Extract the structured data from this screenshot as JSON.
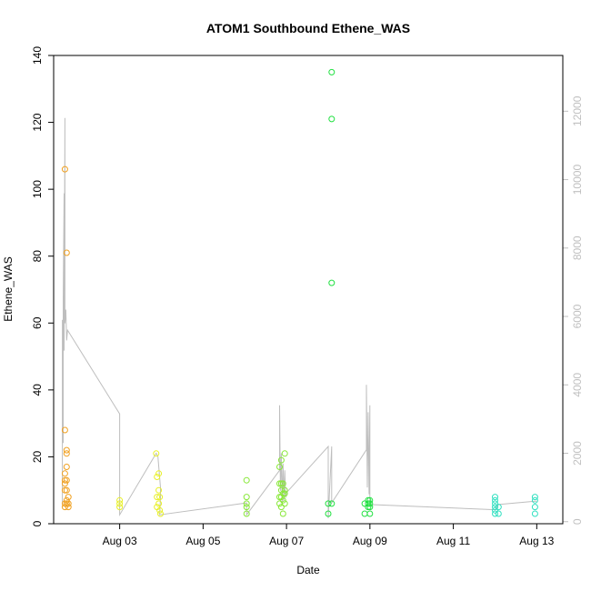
{
  "chart_data": {
    "type": "scatter",
    "title": "ATOM1 Southbound Ethene_WAS",
    "xlabel": "Date",
    "ylabel": "Ethene_WAS",
    "xlim": [
      "2016-08-01T10:00",
      "2016-08-13T15:00"
    ],
    "ylim": [
      0,
      140
    ],
    "y2lim": [
      -60,
      13630
    ],
    "x_ticks": [
      {
        "t": "2016-08-03",
        "label": "Aug 03"
      },
      {
        "t": "2016-08-05",
        "label": "Aug 05"
      },
      {
        "t": "2016-08-07",
        "label": "Aug 07"
      },
      {
        "t": "2016-08-09",
        "label": "Aug 09"
      },
      {
        "t": "2016-08-11",
        "label": "Aug 11"
      },
      {
        "t": "2016-08-13",
        "label": "Aug 13"
      }
    ],
    "y_ticks": [
      0,
      20,
      40,
      60,
      80,
      100,
      120,
      140
    ],
    "y2_ticks": [
      0,
      2000,
      4000,
      6000,
      8000,
      10000,
      12000
    ],
    "grid": false,
    "legend": "none",
    "colors": {
      "line": "#bebebe",
      "axis": "#000000",
      "secondary_axis": "#c0c0c0",
      "points_palette": [
        "#ff8c00",
        "#ffd700",
        "#ffff00",
        "#adff2f",
        "#7cfc00",
        "#32cd32",
        "#00ff7f",
        "#40e0d0"
      ]
    },
    "series": [
      {
        "color": "#f0a020",
        "points": [
          [
            "2016-08-01T16:30",
            106
          ],
          [
            "2016-08-01T16:30",
            28
          ],
          [
            "2016-08-01T16:30",
            15
          ],
          [
            "2016-08-01T16:30",
            13
          ],
          [
            "2016-08-01T16:30",
            12
          ],
          [
            "2016-08-01T16:30",
            10
          ],
          [
            "2016-08-01T16:30",
            6
          ],
          [
            "2016-08-01T16:30",
            5
          ],
          [
            "2016-08-01T17:30",
            81
          ],
          [
            "2016-08-01T17:30",
            22
          ],
          [
            "2016-08-01T17:30",
            21
          ],
          [
            "2016-08-01T17:30",
            17
          ],
          [
            "2016-08-01T17:30",
            13
          ],
          [
            "2016-08-01T17:30",
            10
          ],
          [
            "2016-08-01T17:30",
            7
          ],
          [
            "2016-08-01T17:30",
            6
          ],
          [
            "2016-08-01T18:30",
            8
          ],
          [
            "2016-08-01T18:30",
            6
          ],
          [
            "2016-08-01T18:30",
            5
          ]
        ]
      },
      {
        "color": "#e8f028",
        "points": [
          [
            "2016-08-03T00:00",
            7
          ],
          [
            "2016-08-03T00:00",
            6
          ],
          [
            "2016-08-03T00:00",
            5
          ],
          [
            "2016-08-03T21:00",
            21
          ],
          [
            "2016-08-03T21:30",
            14
          ],
          [
            "2016-08-03T21:30",
            8
          ],
          [
            "2016-08-03T21:30",
            5
          ],
          [
            "2016-08-03T22:30",
            15
          ],
          [
            "2016-08-03T22:30",
            10
          ],
          [
            "2016-08-03T22:30",
            6
          ],
          [
            "2016-08-03T23:00",
            8
          ],
          [
            "2016-08-03T23:00",
            4
          ],
          [
            "2016-08-03T23:30",
            3
          ]
        ]
      },
      {
        "color": "#88e838",
        "points": [
          [
            "2016-08-06T01:00",
            13
          ],
          [
            "2016-08-06T01:00",
            8
          ],
          [
            "2016-08-06T01:00",
            6
          ],
          [
            "2016-08-06T01:00",
            5
          ],
          [
            "2016-08-06T01:00",
            3
          ],
          [
            "2016-08-06T20:00",
            17
          ],
          [
            "2016-08-06T20:00",
            12
          ],
          [
            "2016-08-06T20:00",
            8
          ],
          [
            "2016-08-06T20:00",
            6
          ],
          [
            "2016-08-06T21:00",
            19
          ],
          [
            "2016-08-06T21:00",
            12
          ],
          [
            "2016-08-06T21:00",
            10
          ],
          [
            "2016-08-06T21:00",
            8
          ],
          [
            "2016-08-06T21:00",
            5
          ],
          [
            "2016-08-06T22:00",
            12
          ],
          [
            "2016-08-06T22:00",
            9
          ],
          [
            "2016-08-06T22:00",
            7
          ],
          [
            "2016-08-06T22:00",
            3
          ],
          [
            "2016-08-06T23:00",
            21
          ],
          [
            "2016-08-06T23:00",
            10
          ],
          [
            "2016-08-06T23:00",
            9
          ],
          [
            "2016-08-06T23:00",
            6
          ]
        ]
      },
      {
        "color": "#20e040",
        "points": [
          [
            "2016-08-08T00:00",
            6
          ],
          [
            "2016-08-08T00:00",
            3
          ],
          [
            "2016-08-08T02:00",
            135
          ],
          [
            "2016-08-08T02:00",
            121
          ],
          [
            "2016-08-08T02:00",
            72
          ],
          [
            "2016-08-08T02:00",
            6
          ],
          [
            "2016-08-08T21:00",
            6
          ],
          [
            "2016-08-08T21:00",
            3
          ],
          [
            "2016-08-08T23:00",
            7
          ],
          [
            "2016-08-08T23:00",
            6
          ],
          [
            "2016-08-08T23:00",
            5
          ],
          [
            "2016-08-09T00:00",
            7
          ],
          [
            "2016-08-09T00:00",
            6
          ],
          [
            "2016-08-09T00:00",
            5
          ],
          [
            "2016-08-09T00:00",
            3
          ]
        ]
      },
      {
        "color": "#30e0c0",
        "points": [
          [
            "2016-08-12T00:00",
            8
          ],
          [
            "2016-08-12T00:00",
            7
          ],
          [
            "2016-08-12T00:00",
            6
          ],
          [
            "2016-08-12T00:00",
            5
          ],
          [
            "2016-08-12T00:00",
            4
          ],
          [
            "2016-08-12T00:00",
            3
          ],
          [
            "2016-08-12T02:00",
            5
          ],
          [
            "2016-08-12T02:00",
            3
          ],
          [
            "2016-08-12T23:00",
            8
          ],
          [
            "2016-08-12T23:00",
            7
          ],
          [
            "2016-08-12T23:00",
            5
          ],
          [
            "2016-08-12T23:00",
            3
          ]
        ]
      }
    ],
    "secondary_line": {
      "axis": "right",
      "color": "#bebebe",
      "points": [
        [
          "2016-08-01T15:00",
          500
        ],
        [
          "2016-08-01T15:00",
          5900
        ],
        [
          "2016-08-01T15:30",
          2300
        ],
        [
          "2016-08-01T15:30",
          6500
        ],
        [
          "2016-08-01T16:00",
          9600
        ],
        [
          "2016-08-01T16:00",
          5000
        ],
        [
          "2016-08-01T16:30",
          11800
        ],
        [
          "2016-08-01T16:30",
          5800
        ],
        [
          "2016-08-01T17:00",
          6200
        ],
        [
          "2016-08-01T17:30",
          5300
        ],
        [
          "2016-08-01T18:00",
          5600
        ],
        [
          "2016-08-03T00:00",
          3150
        ],
        [
          "2016-08-03T00:00",
          200
        ],
        [
          "2016-08-03T21:00",
          2000
        ],
        [
          "2016-08-03T22:00",
          1900
        ],
        [
          "2016-08-03T23:30",
          1000
        ],
        [
          "2016-08-03T23:30",
          700
        ],
        [
          "2016-08-03T23:00",
          200
        ],
        [
          "2016-08-06T01:00",
          550
        ],
        [
          "2016-08-06T01:00",
          200
        ],
        [
          "2016-08-06T20:00",
          1500
        ],
        [
          "2016-08-06T20:00",
          3400
        ],
        [
          "2016-08-06T20:30",
          900
        ],
        [
          "2016-08-06T21:00",
          2000
        ],
        [
          "2016-08-06T21:30",
          500
        ],
        [
          "2016-08-06T22:00",
          1700
        ],
        [
          "2016-08-06T22:30",
          600
        ],
        [
          "2016-08-06T23:00",
          1500
        ],
        [
          "2016-08-06T23:30",
          700
        ],
        [
          "2016-08-07T00:00",
          850
        ],
        [
          "2016-08-08T00:00",
          2200
        ],
        [
          "2016-08-08T00:00",
          100
        ],
        [
          "2016-08-08T02:00",
          2200
        ],
        [
          "2016-08-08T02:00",
          550
        ],
        [
          "2016-08-08T22:00",
          2100
        ],
        [
          "2016-08-08T22:00",
          4000
        ],
        [
          "2016-08-08T22:30",
          1000
        ],
        [
          "2016-08-08T23:00",
          3200
        ],
        [
          "2016-08-08T23:30",
          800
        ],
        [
          "2016-08-09T00:00",
          3400
        ],
        [
          "2016-08-09T00:00",
          500
        ],
        [
          "2016-08-12T00:00",
          350
        ],
        [
          "2016-08-12T02:00",
          500
        ],
        [
          "2016-08-12T23:00",
          600
        ],
        [
          "2016-08-13T00:00",
          600
        ]
      ]
    }
  }
}
